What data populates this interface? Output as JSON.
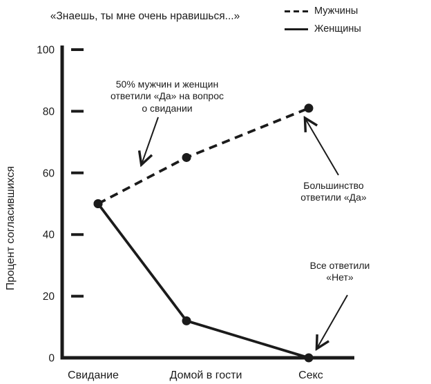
{
  "chart_data": {
    "type": "line",
    "title": "«Знаешь, ты мне очень нравишься...»",
    "categories": [
      "Свидание",
      "Домой в гости",
      "Секс"
    ],
    "series": [
      {
        "name": "Мужчины",
        "line_style": "dashed",
        "values": [
          50,
          65,
          81
        ]
      },
      {
        "name": "Женщины",
        "line_style": "solid",
        "values": [
          50,
          12,
          0
        ]
      }
    ],
    "xlabel": "",
    "ylabel": "Процент согласившихся",
    "ylim": [
      0,
      100
    ],
    "yticks": [
      0,
      20,
      40,
      60,
      80,
      100
    ],
    "grid": false,
    "legend_position": "top-right",
    "marker": "filled-circle",
    "ink_color": "#1b1b1b",
    "background_color": "#ffffff",
    "annotations": [
      {
        "text": "50% мужчин и женщин\nответили «Да» на вопрос\nо свидании",
        "target": "общая точка 50% у категории «Свидание»"
      },
      {
        "text": "Большинство\nответили «Да»",
        "target": "Мужчины, «Секс», 81%"
      },
      {
        "text": "Все ответили\n«Нет»",
        "target": "Женщины, «Секс», 0%"
      }
    ]
  }
}
